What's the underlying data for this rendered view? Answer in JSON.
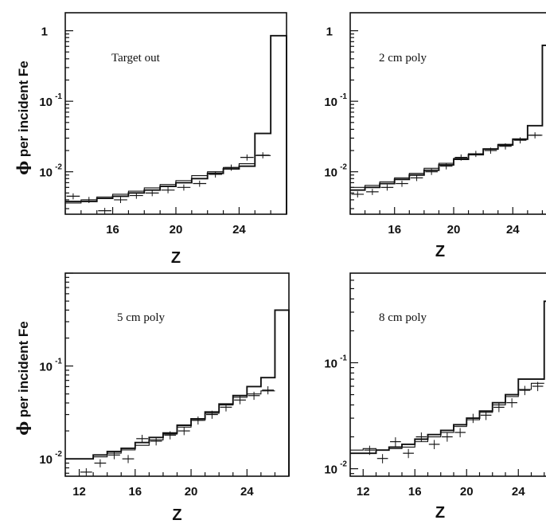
{
  "figure": {
    "ylabel_text": "per incident Fe",
    "ylabel_symbol": "ϕ"
  },
  "chart_data": [
    {
      "type": "line",
      "title": "Target out",
      "xlabel": "Z",
      "ylabel": "ϕ per incident Fe",
      "yscale": "log",
      "xlim": [
        13,
        27
      ],
      "ylim": [
        0.0025,
        1.8
      ],
      "xticks": [
        16,
        20,
        24
      ],
      "yticks": [
        {
          "value": 0.01,
          "base": "10",
          "exp": "-2"
        },
        {
          "value": 0.1,
          "base": "10",
          "exp": "-1"
        },
        {
          "value": 1,
          "base": "1",
          "exp": ""
        }
      ],
      "series": [
        {
          "style": "thick-step",
          "x": [
            13,
            14,
            15,
            16,
            17,
            18,
            19,
            20,
            21,
            22,
            23,
            24,
            25,
            26
          ],
          "values": [
            0.0038,
            0.0038,
            0.0042,
            0.0045,
            0.005,
            0.0055,
            0.0062,
            0.007,
            0.008,
            0.0095,
            0.011,
            0.012,
            0.035,
            0.85
          ]
        },
        {
          "style": "thin-step",
          "x": [
            13,
            14,
            15,
            16,
            17,
            18,
            19,
            20,
            21,
            22,
            23,
            24,
            25
          ],
          "values": [
            0.0036,
            0.004,
            0.0044,
            0.0048,
            0.0053,
            0.0059,
            0.0066,
            0.0075,
            0.0088,
            0.01,
            0.0115,
            0.013,
            0.017
          ]
        },
        {
          "style": "points",
          "x": [
            13,
            14,
            15,
            16,
            17,
            18,
            19,
            20,
            21,
            22,
            23,
            24,
            25
          ],
          "values": [
            0.0045,
            0.004,
            0.0028,
            0.004,
            0.0046,
            0.005,
            0.0055,
            0.006,
            0.0068,
            0.0092,
            0.0115,
            0.016,
            0.0172
          ]
        }
      ]
    },
    {
      "type": "line",
      "title": "2 cm poly",
      "xlabel": "Z",
      "ylabel": "",
      "yscale": "log",
      "xlim": [
        13,
        27
      ],
      "ylim": [
        0.0025,
        1.8
      ],
      "xticks": [
        16,
        20,
        24
      ],
      "yticks": [
        {
          "value": 0.01,
          "base": "10",
          "exp": "-2"
        },
        {
          "value": 0.1,
          "base": "10",
          "exp": "-1"
        },
        {
          "value": 1,
          "base": "1",
          "exp": ""
        }
      ],
      "series": [
        {
          "style": "thick-step",
          "x": [
            13,
            14,
            15,
            16,
            17,
            18,
            19,
            20,
            21,
            22,
            23,
            24,
            25,
            26
          ],
          "values": [
            0.0055,
            0.006,
            0.0068,
            0.0078,
            0.009,
            0.0105,
            0.0125,
            0.015,
            0.0175,
            0.021,
            0.024,
            0.029,
            0.045,
            0.62
          ]
        },
        {
          "style": "thin-step",
          "x": [
            13,
            14,
            15,
            16,
            17,
            18,
            19,
            20,
            21,
            22,
            23,
            24,
            25
          ],
          "values": [
            0.006,
            0.0064,
            0.0072,
            0.0082,
            0.0095,
            0.0112,
            0.0132,
            0.0155,
            0.018,
            0.0212,
            0.0245,
            0.029,
            0.033
          ]
        },
        {
          "style": "points",
          "x": [
            13,
            14,
            15,
            16,
            17,
            18,
            19,
            20,
            21,
            22,
            23,
            24,
            25
          ],
          "values": [
            0.0048,
            0.0052,
            0.006,
            0.0068,
            0.0082,
            0.01,
            0.012,
            0.016,
            0.018,
            0.02,
            0.023,
            0.028,
            0.033
          ]
        }
      ]
    },
    {
      "type": "line",
      "title": "5 cm poly",
      "xlabel": "Z",
      "ylabel": "ϕ per incident Fe",
      "yscale": "log",
      "xlim": [
        11,
        27
      ],
      "ylim": [
        0.0065,
        1.0
      ],
      "xticks": [
        12,
        16,
        20,
        24
      ],
      "yticks": [
        {
          "value": 0.01,
          "base": "10",
          "exp": "-2"
        },
        {
          "value": 0.1,
          "base": "10",
          "exp": "-1"
        }
      ],
      "series": [
        {
          "style": "thick-step",
          "x": [
            11,
            12,
            13,
            14,
            15,
            16,
            17,
            18,
            19,
            20,
            21,
            22,
            23,
            24,
            25,
            26
          ],
          "values": [
            0.01,
            0.01,
            0.011,
            0.012,
            0.013,
            0.015,
            0.017,
            0.019,
            0.023,
            0.027,
            0.032,
            0.039,
            0.048,
            0.06,
            0.075,
            0.4
          ]
        },
        {
          "style": "thin-step",
          "x": [
            11,
            12,
            13,
            14,
            15,
            16,
            17,
            18,
            19,
            20,
            21,
            22,
            23,
            24,
            25
          ],
          "values": [
            0.01,
            0.01,
            0.0105,
            0.0115,
            0.0125,
            0.014,
            0.016,
            0.0185,
            0.022,
            0.026,
            0.031,
            0.038,
            0.046,
            0.05,
            0.054
          ]
        },
        {
          "style": "points",
          "x": [
            12,
            13,
            14,
            15,
            16,
            17,
            18,
            19,
            20,
            21,
            22,
            23,
            24,
            25
          ],
          "values": [
            0.0072,
            0.009,
            0.011,
            0.01,
            0.0165,
            0.0155,
            0.018,
            0.02,
            0.026,
            0.03,
            0.036,
            0.043,
            0.048,
            0.055
          ]
        }
      ]
    },
    {
      "type": "line",
      "title": "8 cm poly",
      "xlabel": "Z",
      "ylabel": "",
      "yscale": "log",
      "xlim": [
        11,
        27
      ],
      "ylim": [
        0.0085,
        0.7
      ],
      "xticks": [
        12,
        16,
        20,
        24
      ],
      "yticks": [
        {
          "value": 0.01,
          "base": "10",
          "exp": "-2"
        },
        {
          "value": 0.1,
          "base": "10",
          "exp": "-1"
        }
      ],
      "series": [
        {
          "style": "thick-step",
          "x": [
            11,
            12,
            13,
            14,
            15,
            16,
            17,
            18,
            19,
            20,
            21,
            22,
            23,
            24,
            25,
            26
          ],
          "values": [
            0.014,
            0.014,
            0.015,
            0.016,
            0.017,
            0.019,
            0.021,
            0.023,
            0.026,
            0.03,
            0.035,
            0.042,
            0.05,
            0.07,
            0.07,
            0.38
          ]
        },
        {
          "style": "thin-step",
          "x": [
            11,
            12,
            13,
            14,
            15,
            16,
            17,
            18,
            19,
            20,
            21,
            22,
            23,
            24,
            25
          ],
          "values": [
            0.015,
            0.0155,
            0.015,
            0.0155,
            0.016,
            0.018,
            0.02,
            0.022,
            0.025,
            0.029,
            0.034,
            0.04,
            0.048,
            0.056,
            0.064
          ]
        },
        {
          "style": "points",
          "x": [
            12,
            13,
            14,
            15,
            16,
            17,
            18,
            19,
            20,
            21,
            22,
            23,
            24,
            25
          ],
          "values": [
            0.015,
            0.0125,
            0.018,
            0.014,
            0.02,
            0.017,
            0.02,
            0.022,
            0.03,
            0.032,
            0.038,
            0.042,
            0.055,
            0.06
          ]
        }
      ]
    }
  ]
}
